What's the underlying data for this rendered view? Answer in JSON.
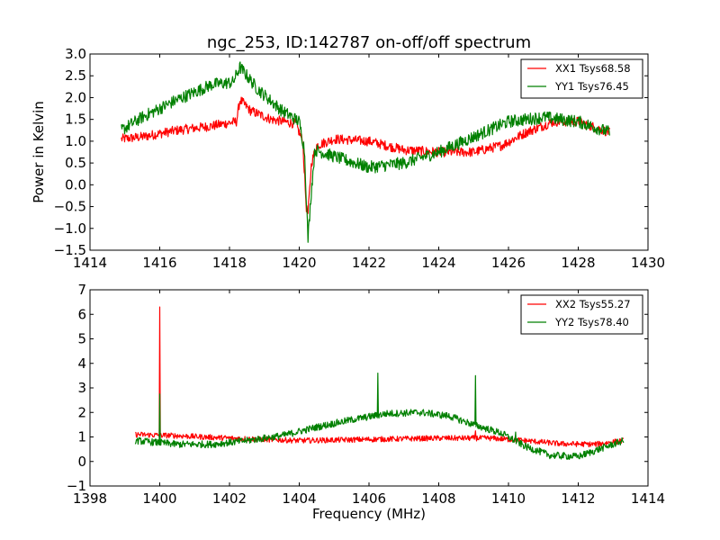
{
  "chart_data": [
    {
      "type": "line",
      "title": "ngc_253, ID:142787 on-off/off spectrum",
      "xlabel": "",
      "ylabel": "Power in Kelvin",
      "xlim": [
        1414,
        1430
      ],
      "ylim": [
        -1.5,
        3.0
      ],
      "xticks": [
        "1414",
        "1416",
        "1418",
        "1420",
        "1422",
        "1424",
        "1426",
        "1428",
        "1430"
      ],
      "yticks": [
        "−1.5",
        "−1.0",
        "−0.5",
        "0.0",
        "0.5",
        "1.0",
        "1.5",
        "2.0",
        "2.5",
        "3.0"
      ],
      "xtick_values": [
        1414,
        1416,
        1418,
        1420,
        1422,
        1424,
        1426,
        1428,
        1430
      ],
      "ytick_values": [
        -1.5,
        -1.0,
        -0.5,
        0.0,
        0.5,
        1.0,
        1.5,
        2.0,
        2.5,
        3.0
      ],
      "grid": false,
      "legend_position": "top-right",
      "series": [
        {
          "name": "XX1 Tsys68.58",
          "color": "#ff0000",
          "noise": 0.07,
          "x": [
            1414.9,
            1415.5,
            1416.5,
            1417.5,
            1418.2,
            1418.3,
            1418.6,
            1419.2,
            1419.9,
            1420.1,
            1420.2,
            1420.25,
            1420.35,
            1420.5,
            1421.0,
            1422.0,
            1423.0,
            1424.0,
            1425.0,
            1425.8,
            1426.5,
            1427.3,
            1428.0,
            1428.9
          ],
          "y": [
            1.05,
            1.1,
            1.25,
            1.35,
            1.45,
            1.95,
            1.7,
            1.5,
            1.4,
            1.0,
            -0.5,
            -0.7,
            0.5,
            0.9,
            1.05,
            1.0,
            0.8,
            0.75,
            0.75,
            0.9,
            1.2,
            1.45,
            1.45,
            1.2
          ]
        },
        {
          "name": "YY1 Tsys76.45",
          "color": "#008000",
          "noise": 0.09,
          "x": [
            1414.9,
            1415.5,
            1416.5,
            1417.5,
            1418.1,
            1418.3,
            1418.8,
            1419.5,
            1420.0,
            1420.15,
            1420.25,
            1420.35,
            1420.45,
            1421.0,
            1422.0,
            1423.0,
            1424.0,
            1425.0,
            1426.0,
            1427.0,
            1428.0,
            1428.9
          ],
          "y": [
            1.25,
            1.55,
            1.95,
            2.3,
            2.35,
            2.7,
            2.2,
            1.7,
            1.45,
            0.8,
            -1.25,
            -0.1,
            0.8,
            0.65,
            0.4,
            0.5,
            0.75,
            1.1,
            1.45,
            1.55,
            1.45,
            1.2
          ]
        }
      ]
    },
    {
      "type": "line",
      "title": "",
      "xlabel": "Frequency (MHz)",
      "ylabel": "",
      "xlim": [
        1398,
        1414
      ],
      "ylim": [
        -1,
        7
      ],
      "xticks": [
        "1398",
        "1400",
        "1402",
        "1404",
        "1406",
        "1408",
        "1410",
        "1412",
        "1414"
      ],
      "yticks": [
        "−1",
        "0",
        "1",
        "2",
        "3",
        "4",
        "5",
        "6",
        "7"
      ],
      "xtick_values": [
        1398,
        1400,
        1402,
        1404,
        1406,
        1408,
        1410,
        1412,
        1414
      ],
      "ytick_values": [
        -1,
        0,
        1,
        2,
        3,
        4,
        5,
        6,
        7
      ],
      "grid": false,
      "legend_position": "top-right",
      "series": [
        {
          "name": "XX2 Tsys55.27",
          "color": "#ff0000",
          "noise": 0.07,
          "x": [
            1399.3,
            1400.5,
            1402.0,
            1404.0,
            1406.0,
            1408.0,
            1409.5,
            1410.5,
            1411.5,
            1412.5,
            1413.3
          ],
          "y": [
            1.1,
            1.05,
            0.95,
            0.85,
            0.9,
            0.95,
            0.95,
            0.85,
            0.72,
            0.7,
            0.85
          ],
          "spikes": [
            {
              "x": 1400.0,
              "y": 6.3
            },
            {
              "x": 1409.05,
              "y": 1.25
            }
          ]
        },
        {
          "name": "YY2 Tsys78.40",
          "color": "#008000",
          "noise": 0.09,
          "x": [
            1399.3,
            1400.5,
            1401.5,
            1402.5,
            1403.5,
            1404.5,
            1405.5,
            1406.5,
            1407.5,
            1408.3,
            1409.0,
            1409.8,
            1410.5,
            1411.2,
            1412.0,
            1412.7,
            1413.3
          ],
          "y": [
            0.85,
            0.7,
            0.7,
            0.85,
            1.05,
            1.4,
            1.7,
            1.95,
            2.0,
            1.85,
            1.5,
            1.15,
            0.6,
            0.25,
            0.2,
            0.55,
            0.85
          ],
          "spikes": [
            {
              "x": 1400.0,
              "y": 2.75
            },
            {
              "x": 1406.25,
              "y": 3.6
            },
            {
              "x": 1409.05,
              "y": 3.5
            },
            {
              "x": 1410.2,
              "y": 1.2
            }
          ]
        }
      ]
    }
  ]
}
